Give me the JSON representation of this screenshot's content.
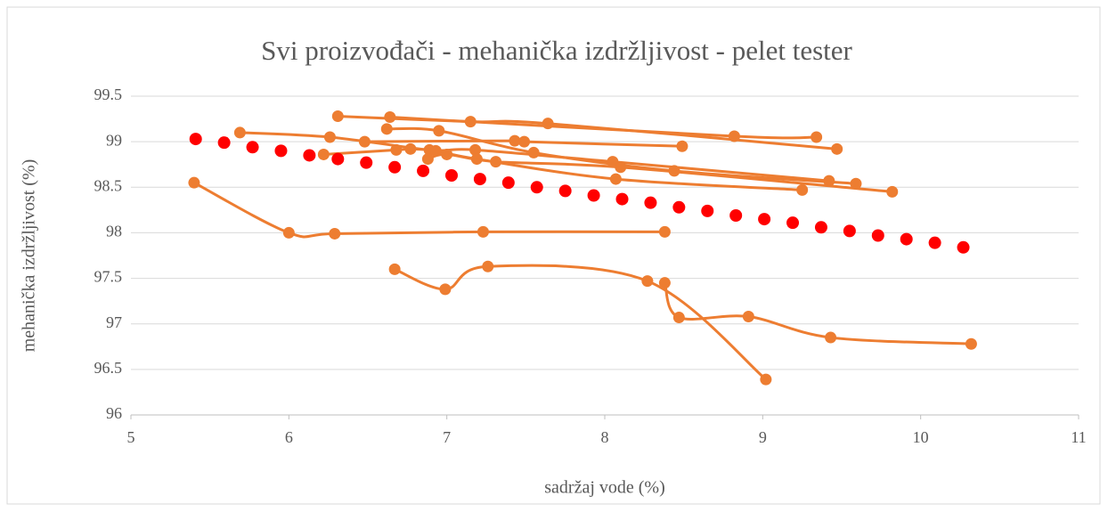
{
  "chart_data": {
    "type": "scatter",
    "title": "Svi proizvođači - mehanička izdržljivost - pelet tester",
    "x_label": "sadržaj vode (%)",
    "y_label": "mehanička izdržljivost (%)",
    "xlim": [
      5,
      11
    ],
    "xticks": [
      5,
      6,
      7,
      8,
      9,
      10,
      11
    ],
    "ylim": [
      96,
      99.5
    ],
    "yticks": [
      96,
      96.5,
      97,
      97.5,
      98,
      98.5,
      99,
      99.5
    ],
    "grid": true,
    "smooth": true,
    "series": [
      {
        "color": "#ed7d31",
        "x": [
          6.31,
          7.15,
          7.64,
          9.47
        ],
        "values": [
          99.28,
          99.22,
          99.2,
          98.92
        ]
      },
      {
        "color": "#ed7d31",
        "x": [
          6.64,
          8.82,
          9.34
        ],
        "values": [
          99.27,
          99.06,
          99.05
        ]
      },
      {
        "color": "#ed7d31",
        "x": [
          5.69,
          6.26,
          6.89,
          7.18,
          8.05,
          9.42
        ],
        "values": [
          99.1,
          99.05,
          98.91,
          98.91,
          98.78,
          98.57
        ]
      },
      {
        "color": "#ed7d31",
        "x": [
          6.48,
          7.43,
          7.49,
          8.49
        ],
        "values": [
          99.0,
          99.01,
          99.0,
          98.95
        ]
      },
      {
        "color": "#ed7d31",
        "x": [
          6.62,
          6.95,
          7.55,
          8.44,
          9.59
        ],
        "values": [
          99.14,
          99.12,
          98.88,
          98.68,
          98.54
        ]
      },
      {
        "color": "#ed7d31",
        "x": [
          6.22,
          6.68,
          6.77,
          6.93,
          7.19,
          8.07,
          9.25
        ],
        "values": [
          98.86,
          98.91,
          98.92,
          98.9,
          98.81,
          98.59,
          98.47
        ]
      },
      {
        "color": "#ed7d31",
        "x": [
          6.88,
          7.0,
          7.31,
          8.1,
          9.82
        ],
        "values": [
          98.81,
          98.86,
          98.78,
          98.72,
          98.45
        ]
      },
      {
        "color": "#ed7d31",
        "x": [
          5.4,
          6.0,
          6.29,
          7.23,
          8.38
        ],
        "values": [
          98.55,
          98.0,
          97.99,
          98.01,
          98.01
        ]
      },
      {
        "color": "#ed7d31",
        "x": [
          6.67,
          6.99,
          7.26,
          8.27,
          9.02
        ],
        "values": [
          97.6,
          97.38,
          97.63,
          97.47,
          96.39
        ]
      },
      {
        "color": "#ed7d31",
        "x": [
          8.38,
          8.47,
          8.91,
          9.43,
          10.32
        ],
        "values": [
          97.45,
          97.07,
          97.08,
          96.85,
          96.78
        ]
      },
      {
        "color": "#ff0000",
        "style": "dots",
        "x": [
          5.41,
          5.59,
          5.77,
          5.95,
          6.13,
          6.31,
          6.49,
          6.67,
          6.85,
          7.03,
          7.21,
          7.39,
          7.57,
          7.75,
          7.93,
          8.11,
          8.29,
          8.47,
          8.65,
          8.83,
          9.01,
          9.19,
          9.37,
          9.55,
          9.73,
          9.91,
          10.09,
          10.27
        ],
        "values": [
          99.03,
          98.99,
          98.94,
          98.9,
          98.85,
          98.81,
          98.77,
          98.72,
          98.68,
          98.63,
          98.59,
          98.55,
          98.5,
          98.46,
          98.41,
          98.37,
          98.33,
          98.28,
          98.24,
          98.19,
          98.15,
          98.11,
          98.06,
          98.02,
          97.97,
          97.93,
          97.89,
          97.84
        ]
      }
    ]
  }
}
